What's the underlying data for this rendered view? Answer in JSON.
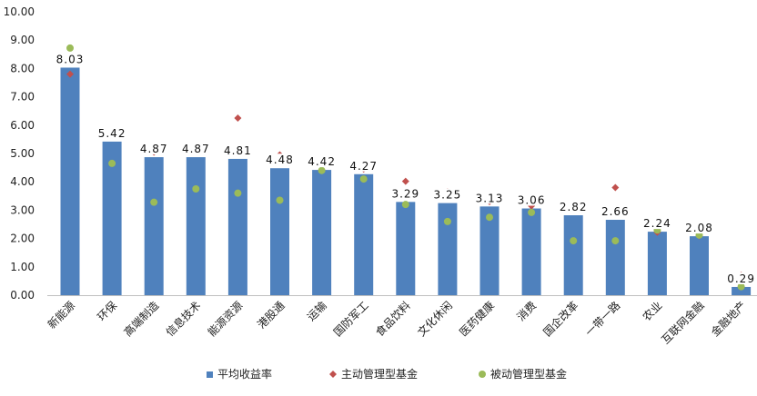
{
  "chart_data": {
    "type": "bar",
    "categories": [
      "新能源",
      "环保",
      "高端制造",
      "信息技术",
      "能源资源",
      "港股通",
      "运输",
      "国防军工",
      "食品饮料",
      "文化休闲",
      "医药健康",
      "消费",
      "国企改革",
      "一带一路",
      "农业",
      "互联网金融",
      "金融地产"
    ],
    "series": [
      {
        "name": "平均收益率",
        "kind": "bar",
        "color": "#4F81BD",
        "values": [
          8.03,
          5.42,
          4.87,
          4.87,
          4.81,
          4.48,
          4.42,
          4.27,
          3.29,
          3.25,
          3.13,
          3.06,
          2.82,
          2.66,
          2.24,
          2.08,
          0.29
        ],
        "labels": [
          "8.03",
          "5.42",
          "4.87",
          "4.87",
          "4.81",
          "4.48",
          "4.42",
          "4.27",
          "3.29",
          "3.25",
          "3.13",
          "3.06",
          "2.82",
          "2.66",
          "2.24",
          "2.08",
          "0.29"
        ]
      },
      {
        "name": "主动管理型基金",
        "kind": "diamond",
        "color": "#C0504D",
        "values": [
          7.8,
          5.65,
          5.05,
          5.25,
          6.25,
          4.95,
          4.42,
          4.45,
          4.02,
          3.65,
          3.3,
          3.15,
          3.05,
          3.8,
          2.22,
          2.1,
          0.7
        ]
      },
      {
        "name": "被动管理型基金",
        "kind": "dot",
        "color": "#9BBB59",
        "values": [
          8.72,
          4.65,
          3.28,
          3.75,
          3.6,
          3.35,
          4.4,
          4.1,
          3.2,
          2.6,
          2.75,
          2.92,
          1.92,
          1.92,
          2.3,
          2.12,
          0.3
        ]
      }
    ],
    "y_ticks": [
      "0.00",
      "1.00",
      "2.00",
      "3.00",
      "4.00",
      "5.00",
      "6.00",
      "7.00",
      "8.00",
      "9.00",
      "10.00"
    ],
    "ylim": [
      0,
      10
    ],
    "grid": false,
    "legend_position": "bottom"
  }
}
